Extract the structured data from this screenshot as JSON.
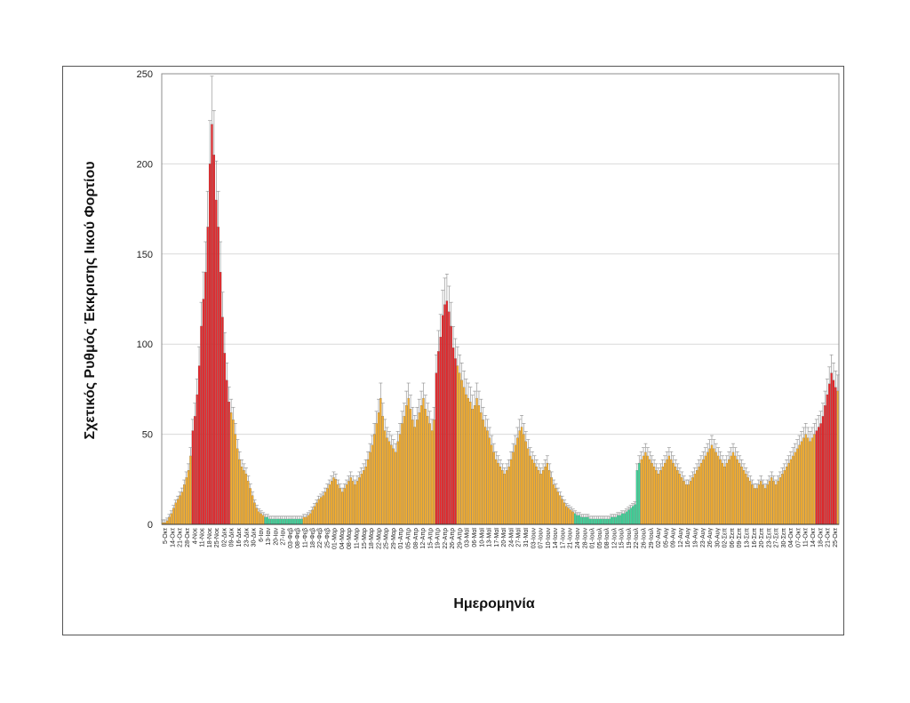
{
  "chart_data": {
    "type": "bar",
    "title": "",
    "xlabel": "Ημερομηνία",
    "ylabel": "Σχετικός Ρυθμός Έκκρισης Ιικού Φορτίου",
    "ylim": [
      0,
      250
    ],
    "yticks": [
      0,
      50,
      100,
      150,
      200,
      250
    ],
    "grid": true,
    "error_bars": true,
    "error_bar_color": "#8a8a8a",
    "colors": {
      "red": "#e8262a",
      "orange": "#f6ae2d",
      "green": "#3dd69a"
    },
    "xticks": [
      "5-Οκτ",
      "14-Οκτ",
      "21-Οκτ",
      "28-Οκτ",
      "4-Νοε",
      "11-Νοε",
      "18-Νοε",
      "25-Νοε",
      "02-Δεκ",
      "09-Δεκ",
      "16-Δεκ",
      "23-Δεκ",
      "30-Δεκ",
      "6-Ιαν",
      "13-Ιαν",
      "20-Ιαν",
      "27-Ιαν",
      "03-Φεβ",
      "08-Φεβ",
      "11-Φεβ",
      "18-Φεβ",
      "22-Φεβ",
      "25-Φεβ",
      "01-Μαρ",
      "04-Μαρ",
      "08-Μαρ",
      "11-Μαρ",
      "15-Μαρ",
      "18-Μαρ",
      "22-Μαρ",
      "25-Μαρ",
      "29-Μαρ",
      "01-Απρ",
      "05-Απρ",
      "08-Απρ",
      "12-Απρ",
      "15-Απρ",
      "19-Απρ",
      "22-Απρ",
      "26-Απρ",
      "29-Απρ",
      "03-Μαϊ",
      "06-Μαϊ",
      "10-Μαϊ",
      "13-Μαϊ",
      "17-Μαϊ",
      "20-Μαϊ",
      "24-Μαϊ",
      "27-Μαϊ",
      "31-Μαϊ",
      "03-Ιουν",
      "07-Ιουν",
      "10-Ιουν",
      "14-Ιουν",
      "17-Ιουν",
      "21-Ιουν",
      "24-Ιουν",
      "28-Ιουν",
      "01-Ιουλ",
      "05-Ιουλ",
      "08-Ιουλ",
      "12-Ιουλ",
      "15-Ιουλ",
      "19-Ιουλ",
      "22-Ιουλ",
      "26-Ιουλ",
      "29-Ιουλ",
      "02-Αυγ",
      "05-Αυγ",
      "09-Αυγ",
      "12-Αυγ",
      "16-Αυγ",
      "19-Αυγ",
      "23-Αυγ",
      "26-Αυγ",
      "30-Αυγ",
      "02-Σεπ",
      "06-Σεπ",
      "09-Σεπ",
      "13-Σεπ",
      "16-Σεπ",
      "20-Σεπ",
      "23-Σεπ",
      "27-Σεπ",
      "30-Σεπ",
      "04-Οκτ",
      "07-Οκτ",
      "11-Οκτ",
      "14-Οκτ",
      "18-Οκτ",
      "21-Οκτ",
      "25-Οκτ"
    ],
    "values": [
      1,
      1,
      2,
      4,
      6,
      9,
      12,
      14,
      16,
      18,
      22,
      26,
      30,
      38,
      52,
      60,
      72,
      88,
      110,
      125,
      140,
      165,
      200,
      222,
      205,
      180,
      165,
      140,
      115,
      95,
      80,
      68,
      62,
      58,
      50,
      42,
      36,
      32,
      30,
      28,
      24,
      20,
      16,
      12,
      9,
      7,
      6,
      5,
      4,
      4,
      3,
      3,
      3,
      3,
      3,
      3,
      3,
      3,
      3,
      3,
      3,
      3,
      3,
      3,
      3,
      3,
      4,
      4,
      5,
      6,
      8,
      10,
      12,
      14,
      15,
      16,
      18,
      20,
      22,
      24,
      26,
      25,
      22,
      20,
      18,
      20,
      22,
      24,
      26,
      24,
      22,
      24,
      26,
      28,
      30,
      32,
      36,
      40,
      44,
      50,
      56,
      62,
      70,
      60,
      52,
      48,
      46,
      44,
      42,
      40,
      46,
      50,
      56,
      60,
      66,
      70,
      64,
      58,
      54,
      58,
      62,
      66,
      70,
      64,
      60,
      56,
      52,
      58,
      84,
      96,
      104,
      116,
      122,
      124,
      118,
      110,
      98,
      92,
      88,
      84,
      80,
      76,
      72,
      70,
      68,
      64,
      66,
      70,
      66,
      62,
      58,
      54,
      52,
      48,
      44,
      40,
      36,
      34,
      32,
      30,
      28,
      30,
      32,
      36,
      40,
      44,
      48,
      52,
      54,
      50,
      46,
      42,
      38,
      36,
      34,
      32,
      30,
      28,
      30,
      32,
      34,
      30,
      26,
      22,
      20,
      18,
      16,
      14,
      12,
      10,
      9,
      8,
      7,
      6,
      5,
      5,
      4,
      4,
      4,
      4,
      3,
      3,
      3,
      3,
      3,
      3,
      3,
      3,
      3,
      3,
      4,
      4,
      4,
      5,
      5,
      6,
      6,
      7,
      8,
      9,
      10,
      11,
      30,
      34,
      36,
      38,
      40,
      38,
      36,
      34,
      32,
      30,
      28,
      30,
      32,
      34,
      36,
      38,
      36,
      34,
      32,
      30,
      28,
      26,
      24,
      22,
      22,
      24,
      26,
      28,
      30,
      32,
      34,
      36,
      38,
      40,
      42,
      44,
      42,
      40,
      38,
      36,
      34,
      32,
      34,
      36,
      38,
      40,
      38,
      36,
      34,
      32,
      30,
      28,
      26,
      24,
      22,
      20,
      20,
      22,
      24,
      22,
      20,
      22,
      24,
      26,
      24,
      22,
      24,
      26,
      28,
      30,
      32,
      34,
      36,
      38,
      40,
      42,
      44,
      46,
      48,
      50,
      48,
      46,
      48,
      50,
      52,
      54,
      56,
      60,
      66,
      72,
      78,
      84,
      80,
      76,
      74
    ],
    "colors_index": [
      "o",
      "o",
      "o",
      "o",
      "o",
      "o",
      "o",
      "o",
      "o",
      "o",
      "o",
      "o",
      "o",
      "o",
      "r",
      "r",
      "r",
      "r",
      "r",
      "r",
      "r",
      "r",
      "r",
      "r",
      "r",
      "r",
      "r",
      "r",
      "r",
      "r",
      "r",
      "r",
      "o",
      "o",
      "o",
      "o",
      "o",
      "o",
      "o",
      "o",
      "o",
      "o",
      "o",
      "o",
      "o",
      "o",
      "o",
      "o",
      "g",
      "g",
      "g",
      "g",
      "g",
      "g",
      "g",
      "g",
      "g",
      "g",
      "g",
      "g",
      "g",
      "g",
      "g",
      "g",
      "g",
      "g",
      "o",
      "o",
      "o",
      "o",
      "o",
      "o",
      "o",
      "o",
      "o",
      "o",
      "o",
      "o",
      "o",
      "o",
      "o",
      "o",
      "o",
      "o",
      "o",
      "o",
      "o",
      "o",
      "o",
      "o",
      "o",
      "o",
      "o",
      "o",
      "o",
      "o",
      "o",
      "o",
      "o",
      "o",
      "o",
      "o",
      "o",
      "o",
      "o",
      "o",
      "o",
      "o",
      "o",
      "o",
      "o",
      "o",
      "o",
      "o",
      "o",
      "o",
      "o",
      "o",
      "o",
      "o",
      "o",
      "o",
      "o",
      "o",
      "o",
      "o",
      "o",
      "o",
      "r",
      "r",
      "r",
      "r",
      "r",
      "r",
      "r",
      "r",
      "r",
      "r",
      "o",
      "o",
      "o",
      "o",
      "o",
      "o",
      "o",
      "o",
      "o",
      "o",
      "o",
      "o",
      "o",
      "o",
      "o",
      "o",
      "o",
      "o",
      "o",
      "o",
      "o",
      "o",
      "o",
      "o",
      "o",
      "o",
      "o",
      "o",
      "o",
      "o",
      "o",
      "o",
      "o",
      "o",
      "o",
      "o",
      "o",
      "o",
      "o",
      "o",
      "o",
      "o",
      "o",
      "o",
      "o",
      "o",
      "o",
      "o",
      "o",
      "o",
      "o",
      "o",
      "o",
      "o",
      "o",
      "g",
      "g",
      "g",
      "g",
      "g",
      "g",
      "g",
      "g",
      "g",
      "g",
      "g",
      "g",
      "g",
      "g",
      "g",
      "g",
      "g",
      "g",
      "g",
      "g",
      "g",
      "g",
      "g",
      "g",
      "g",
      "g",
      "g",
      "g",
      "g",
      "g",
      "g",
      "o",
      "o",
      "o",
      "o",
      "o",
      "o",
      "o",
      "o",
      "o",
      "o",
      "o",
      "o",
      "o",
      "o",
      "o",
      "o",
      "o",
      "o",
      "o",
      "o",
      "o",
      "o",
      "o",
      "o",
      "o",
      "o",
      "o",
      "o",
      "o",
      "o",
      "o",
      "o",
      "o",
      "o",
      "o",
      "o",
      "o",
      "o",
      "o",
      "o",
      "o",
      "o",
      "o",
      "o",
      "o",
      "o",
      "o",
      "o",
      "o",
      "o",
      "o",
      "o",
      "o",
      "o",
      "o",
      "o",
      "o",
      "o",
      "o",
      "o",
      "o",
      "o",
      "o",
      "o",
      "o",
      "o",
      "o",
      "o",
      "o",
      "o",
      "o",
      "o",
      "o",
      "o",
      "o",
      "o",
      "o",
      "o",
      "o",
      "o",
      "o",
      "o",
      "r",
      "r",
      "r",
      "r",
      "r",
      "r",
      "r",
      "r",
      "r",
      "r"
    ]
  }
}
